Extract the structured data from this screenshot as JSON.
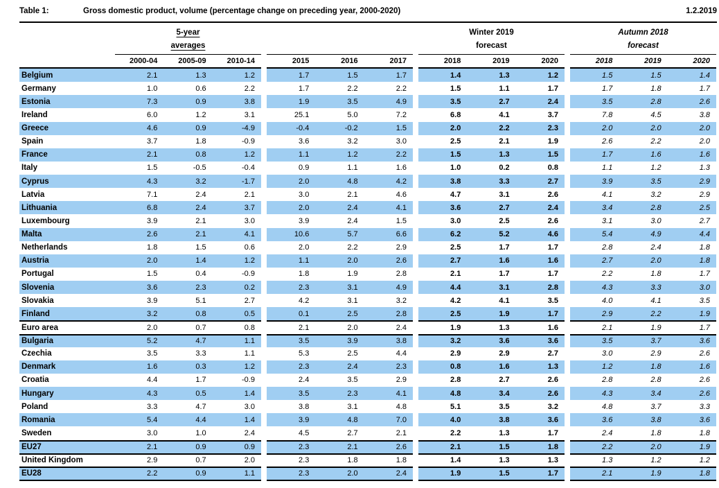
{
  "meta": {
    "table_label": "Table 1:",
    "title": "Gross domestic product, volume (percentage change on preceding year, 2000-2020)",
    "date": "1.2.2019"
  },
  "colors": {
    "row_highlight": "#A0CEF2",
    "rule": "#000000"
  },
  "header": {
    "group1": {
      "line1": "5-year",
      "line2": "averages",
      "years": [
        "2000-04",
        "2005-09",
        "2010-14"
      ]
    },
    "group2": {
      "years": [
        "2015",
        "2016",
        "2017"
      ]
    },
    "group3": {
      "line1": "Winter 2019",
      "line2": "forecast",
      "years": [
        "2018",
        "2019",
        "2020"
      ]
    },
    "group4": {
      "line1": "Autumn 2018",
      "line2": "forecast",
      "years": [
        "2018",
        "2019",
        "2020"
      ]
    }
  },
  "table": {
    "columns": [
      "2000-04",
      "2005-09",
      "2010-14",
      "2015",
      "2016",
      "2017",
      "w2018",
      "w2019",
      "w2020",
      "a2018",
      "a2019",
      "a2020"
    ],
    "rows": [
      {
        "name": "Belgium",
        "highlight": true,
        "sep_above": false,
        "values": [
          "2.1",
          "1.3",
          "1.2",
          "1.7",
          "1.5",
          "1.7",
          "1.4",
          "1.3",
          "1.2",
          "1.5",
          "1.5",
          "1.4"
        ]
      },
      {
        "name": "Germany",
        "highlight": false,
        "sep_above": false,
        "values": [
          "1.0",
          "0.6",
          "2.2",
          "1.7",
          "2.2",
          "2.2",
          "1.5",
          "1.1",
          "1.7",
          "1.7",
          "1.8",
          "1.7"
        ]
      },
      {
        "name": "Estonia",
        "highlight": true,
        "sep_above": false,
        "values": [
          "7.3",
          "0.9",
          "3.8",
          "1.9",
          "3.5",
          "4.9",
          "3.5",
          "2.7",
          "2.4",
          "3.5",
          "2.8",
          "2.6"
        ]
      },
      {
        "name": "Ireland",
        "highlight": false,
        "sep_above": false,
        "values": [
          "6.0",
          "1.2",
          "3.1",
          "25.1",
          "5.0",
          "7.2",
          "6.8",
          "4.1",
          "3.7",
          "7.8",
          "4.5",
          "3.8"
        ]
      },
      {
        "name": "Greece",
        "highlight": true,
        "sep_above": false,
        "values": [
          "4.6",
          "0.9",
          "-4.9",
          "-0.4",
          "-0.2",
          "1.5",
          "2.0",
          "2.2",
          "2.3",
          "2.0",
          "2.0",
          "2.0"
        ]
      },
      {
        "name": "Spain",
        "highlight": false,
        "sep_above": false,
        "values": [
          "3.7",
          "1.8",
          "-0.9",
          "3.6",
          "3.2",
          "3.0",
          "2.5",
          "2.1",
          "1.9",
          "2.6",
          "2.2",
          "2.0"
        ]
      },
      {
        "name": "France",
        "highlight": true,
        "sep_above": false,
        "values": [
          "2.1",
          "0.8",
          "1.2",
          "1.1",
          "1.2",
          "2.2",
          "1.5",
          "1.3",
          "1.5",
          "1.7",
          "1.6",
          "1.6"
        ]
      },
      {
        "name": "Italy",
        "highlight": false,
        "sep_above": false,
        "values": [
          "1.5",
          "-0.5",
          "-0.4",
          "0.9",
          "1.1",
          "1.6",
          "1.0",
          "0.2",
          "0.8",
          "1.1",
          "1.2",
          "1.3"
        ]
      },
      {
        "name": "Cyprus",
        "highlight": true,
        "sep_above": false,
        "values": [
          "4.3",
          "3.2",
          "-1.7",
          "2.0",
          "4.8",
          "4.2",
          "3.8",
          "3.3",
          "2.7",
          "3.9",
          "3.5",
          "2.9"
        ]
      },
      {
        "name": "Latvia",
        "highlight": false,
        "sep_above": false,
        "values": [
          "7.1",
          "2.4",
          "2.1",
          "3.0",
          "2.1",
          "4.6",
          "4.7",
          "3.1",
          "2.6",
          "4.1",
          "3.2",
          "2.9"
        ]
      },
      {
        "name": "Lithuania",
        "highlight": true,
        "sep_above": false,
        "values": [
          "6.8",
          "2.4",
          "3.7",
          "2.0",
          "2.4",
          "4.1",
          "3.6",
          "2.7",
          "2.4",
          "3.4",
          "2.8",
          "2.5"
        ]
      },
      {
        "name": "Luxembourg",
        "highlight": false,
        "sep_above": false,
        "values": [
          "3.9",
          "2.1",
          "3.0",
          "3.9",
          "2.4",
          "1.5",
          "3.0",
          "2.5",
          "2.6",
          "3.1",
          "3.0",
          "2.7"
        ]
      },
      {
        "name": "Malta",
        "highlight": true,
        "sep_above": false,
        "values": [
          "2.6",
          "2.1",
          "4.1",
          "10.6",
          "5.7",
          "6.6",
          "6.2",
          "5.2",
          "4.6",
          "5.4",
          "4.9",
          "4.4"
        ]
      },
      {
        "name": "Netherlands",
        "highlight": false,
        "sep_above": false,
        "values": [
          "1.8",
          "1.5",
          "0.6",
          "2.0",
          "2.2",
          "2.9",
          "2.5",
          "1.7",
          "1.7",
          "2.8",
          "2.4",
          "1.8"
        ]
      },
      {
        "name": "Austria",
        "highlight": true,
        "sep_above": false,
        "values": [
          "2.0",
          "1.4",
          "1.2",
          "1.1",
          "2.0",
          "2.6",
          "2.7",
          "1.6",
          "1.6",
          "2.7",
          "2.0",
          "1.8"
        ]
      },
      {
        "name": "Portugal",
        "highlight": false,
        "sep_above": false,
        "values": [
          "1.5",
          "0.4",
          "-0.9",
          "1.8",
          "1.9",
          "2.8",
          "2.1",
          "1.7",
          "1.7",
          "2.2",
          "1.8",
          "1.7"
        ]
      },
      {
        "name": "Slovenia",
        "highlight": true,
        "sep_above": false,
        "values": [
          "3.6",
          "2.3",
          "0.2",
          "2.3",
          "3.1",
          "4.9",
          "4.4",
          "3.1",
          "2.8",
          "4.3",
          "3.3",
          "3.0"
        ]
      },
      {
        "name": "Slovakia",
        "highlight": false,
        "sep_above": false,
        "values": [
          "3.9",
          "5.1",
          "2.7",
          "4.2",
          "3.1",
          "3.2",
          "4.2",
          "4.1",
          "3.5",
          "4.0",
          "4.1",
          "3.5"
        ]
      },
      {
        "name": "Finland",
        "highlight": true,
        "sep_above": false,
        "values": [
          "3.2",
          "0.8",
          "0.5",
          "0.1",
          "2.5",
          "2.8",
          "2.5",
          "1.9",
          "1.7",
          "2.9",
          "2.2",
          "1.9"
        ]
      },
      {
        "name": "Euro area",
        "highlight": false,
        "sep_above": true,
        "values": [
          "2.0",
          "0.7",
          "0.8",
          "2.1",
          "2.0",
          "2.4",
          "1.9",
          "1.3",
          "1.6",
          "2.1",
          "1.9",
          "1.7"
        ]
      },
      {
        "name": "Bulgaria",
        "highlight": true,
        "sep_above": true,
        "values": [
          "5.2",
          "4.7",
          "1.1",
          "3.5",
          "3.9",
          "3.8",
          "3.2",
          "3.6",
          "3.6",
          "3.5",
          "3.7",
          "3.6"
        ]
      },
      {
        "name": "Czechia",
        "highlight": false,
        "sep_above": false,
        "values": [
          "3.5",
          "3.3",
          "1.1",
          "5.3",
          "2.5",
          "4.4",
          "2.9",
          "2.9",
          "2.7",
          "3.0",
          "2.9",
          "2.6"
        ]
      },
      {
        "name": "Denmark",
        "highlight": true,
        "sep_above": false,
        "values": [
          "1.6",
          "0.3",
          "1.2",
          "2.3",
          "2.4",
          "2.3",
          "0.8",
          "1.6",
          "1.3",
          "1.2",
          "1.8",
          "1.6"
        ]
      },
      {
        "name": "Croatia",
        "highlight": false,
        "sep_above": false,
        "values": [
          "4.4",
          "1.7",
          "-0.9",
          "2.4",
          "3.5",
          "2.9",
          "2.8",
          "2.7",
          "2.6",
          "2.8",
          "2.8",
          "2.6"
        ]
      },
      {
        "name": "Hungary",
        "highlight": true,
        "sep_above": false,
        "values": [
          "4.3",
          "0.5",
          "1.4",
          "3.5",
          "2.3",
          "4.1",
          "4.8",
          "3.4",
          "2.6",
          "4.3",
          "3.4",
          "2.6"
        ]
      },
      {
        "name": "Poland",
        "highlight": false,
        "sep_above": false,
        "values": [
          "3.3",
          "4.7",
          "3.0",
          "3.8",
          "3.1",
          "4.8",
          "5.1",
          "3.5",
          "3.2",
          "4.8",
          "3.7",
          "3.3"
        ]
      },
      {
        "name": "Romania",
        "highlight": true,
        "sep_above": false,
        "values": [
          "5.4",
          "4.4",
          "1.4",
          "3.9",
          "4.8",
          "7.0",
          "4.0",
          "3.8",
          "3.6",
          "3.6",
          "3.8",
          "3.6"
        ]
      },
      {
        "name": "Sweden",
        "highlight": false,
        "sep_above": false,
        "values": [
          "3.0",
          "1.0",
          "2.4",
          "4.5",
          "2.7",
          "2.1",
          "2.2",
          "1.3",
          "1.7",
          "2.4",
          "1.8",
          "1.8"
        ]
      },
      {
        "name": "EU27",
        "highlight": true,
        "sep_above": true,
        "values": [
          "2.1",
          "0.9",
          "0.9",
          "2.3",
          "2.1",
          "2.6",
          "2.1",
          "1.5",
          "1.8",
          "2.2",
          "2.0",
          "1.9"
        ]
      },
      {
        "name": "United Kingdom",
        "highlight": false,
        "sep_above": true,
        "values": [
          "2.9",
          "0.7",
          "2.0",
          "2.3",
          "1.8",
          "1.8",
          "1.4",
          "1.3",
          "1.3",
          "1.3",
          "1.2",
          "1.2"
        ]
      },
      {
        "name": "EU28",
        "highlight": true,
        "sep_above": true,
        "values": [
          "2.2",
          "0.9",
          "1.1",
          "2.3",
          "2.0",
          "2.4",
          "1.9",
          "1.5",
          "1.7",
          "2.1",
          "1.9",
          "1.8"
        ]
      }
    ]
  }
}
